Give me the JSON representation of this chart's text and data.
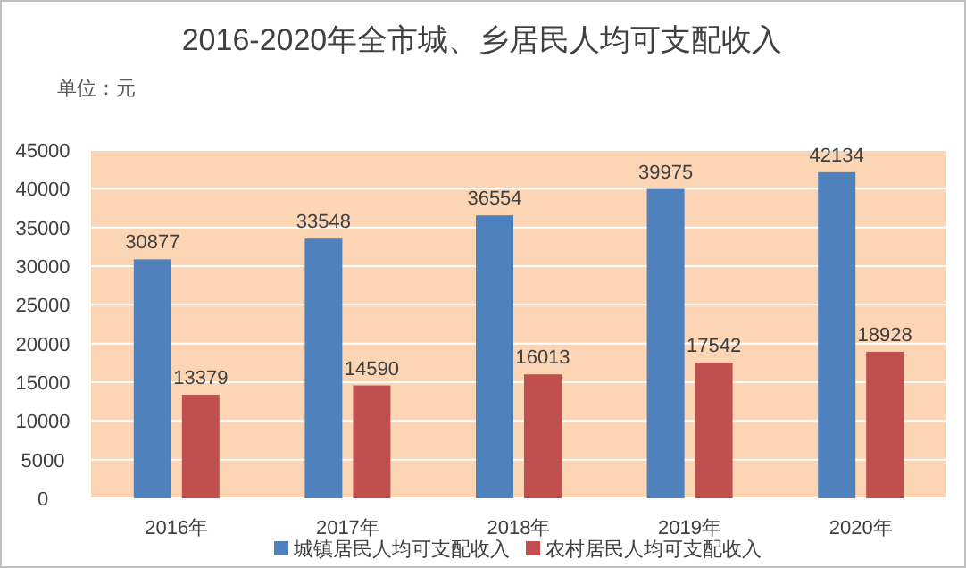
{
  "chart_data": {
    "type": "bar",
    "title": "2016-2020年全市城、乡居民人均可支配收入",
    "annotations": [
      "单位：元"
    ],
    "categories": [
      "2016年",
      "2017年",
      "2018年",
      "2019年",
      "2020年"
    ],
    "series": [
      {
        "name": "城镇居民人均可支配收入",
        "color": "#4f81bd",
        "values": [
          30877,
          33548,
          36554,
          39975,
          42134
        ]
      },
      {
        "name": "农村居民人均可支配收入",
        "color": "#c0504d",
        "values": [
          13379,
          14590,
          16013,
          17542,
          18928
        ]
      }
    ],
    "ylim": [
      0,
      45000
    ],
    "yticks": [
      0,
      5000,
      10000,
      15000,
      20000,
      25000,
      30000,
      35000,
      40000,
      45000
    ],
    "grid": "y",
    "legend": "bottom",
    "data_labels": true
  }
}
